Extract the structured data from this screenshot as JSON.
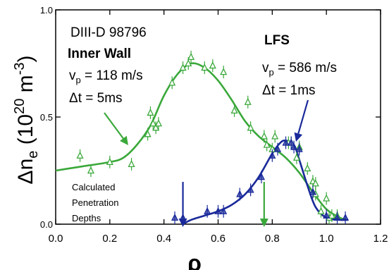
{
  "chart_data": {
    "type": "scatter",
    "title": "",
    "xlabel": "ρ",
    "ylabel_main": "Δn",
    "ylabel_sub": "e",
    "ylabel_rest": " (10",
    "ylabel_exp": "20",
    "ylabel_unit": " m",
    "ylabel_unit_exp": "-3",
    "ylabel_close": ")",
    "xlim": [
      0.0,
      1.2
    ],
    "ylim": [
      0.0,
      1.0
    ],
    "xticks": [
      0.0,
      0.2,
      0.4,
      0.6,
      0.8,
      1.0,
      1.2
    ],
    "xtick_labels": [
      "0.0",
      "0.2",
      "0.4",
      "0.6",
      "0.8",
      "1.0",
      "1.2"
    ],
    "yticks": [
      0.0,
      0.5,
      1.0
    ],
    "ytick_labels": [
      "0.0",
      "0.5",
      "1.0"
    ],
    "grid": false,
    "series": [
      {
        "name": "Inner Wall",
        "color": "#3aa83a",
        "points": [
          [
            0.09,
            0.32
          ],
          [
            0.13,
            0.25
          ],
          [
            0.2,
            0.29
          ],
          [
            0.28,
            0.28
          ],
          [
            0.34,
            0.42
          ],
          [
            0.35,
            0.52
          ],
          [
            0.36,
            0.47
          ],
          [
            0.37,
            0.45
          ],
          [
            0.38,
            0.47
          ],
          [
            0.43,
            0.66
          ],
          [
            0.47,
            0.73
          ],
          [
            0.49,
            0.75
          ],
          [
            0.5,
            0.78
          ],
          [
            0.55,
            0.73
          ],
          [
            0.58,
            0.74
          ],
          [
            0.62,
            0.71
          ],
          [
            0.66,
            0.53
          ],
          [
            0.71,
            0.57
          ],
          [
            0.72,
            0.45
          ],
          [
            0.77,
            0.41
          ],
          [
            0.78,
            0.37
          ],
          [
            0.8,
            0.35
          ],
          [
            0.81,
            0.41
          ],
          [
            0.86,
            0.38
          ],
          [
            0.87,
            0.38
          ],
          [
            0.89,
            0.31
          ],
          [
            0.9,
            0.36
          ],
          [
            0.93,
            0.26
          ],
          [
            0.95,
            0.2
          ],
          [
            0.96,
            0.19
          ],
          [
            0.96,
            0.14
          ],
          [
            0.98,
            0.06
          ],
          [
            1.0,
            0.12
          ],
          [
            1.01,
            0.03
          ],
          [
            1.02,
            0.04
          ],
          [
            1.04,
            0.04
          ]
        ],
        "fit": [
          [
            0.0,
            0.25
          ],
          [
            0.05,
            0.26
          ],
          [
            0.1,
            0.27
          ],
          [
            0.2,
            0.29
          ],
          [
            0.25,
            0.31
          ],
          [
            0.3,
            0.37
          ],
          [
            0.35,
            0.46
          ],
          [
            0.4,
            0.6
          ],
          [
            0.45,
            0.7
          ],
          [
            0.5,
            0.75
          ],
          [
            0.55,
            0.73
          ],
          [
            0.6,
            0.67
          ],
          [
            0.65,
            0.58
          ],
          [
            0.7,
            0.48
          ],
          [
            0.75,
            0.41
          ],
          [
            0.8,
            0.36
          ],
          [
            0.85,
            0.31
          ],
          [
            0.9,
            0.24
          ],
          [
            0.95,
            0.15
          ],
          [
            1.0,
            0.07
          ],
          [
            1.05,
            0.03
          ],
          [
            1.08,
            0.02
          ]
        ]
      },
      {
        "name": "LFS",
        "color": "#1a2a9a",
        "points": [
          [
            0.44,
            0.03
          ],
          [
            0.47,
            0.03
          ],
          [
            0.56,
            0.06
          ],
          [
            0.6,
            0.06
          ],
          [
            0.62,
            0.06
          ],
          [
            0.68,
            0.14
          ],
          [
            0.72,
            0.16
          ],
          [
            0.76,
            0.22
          ],
          [
            0.8,
            0.32
          ],
          [
            0.82,
            0.35
          ],
          [
            0.85,
            0.38
          ],
          [
            0.87,
            0.38
          ],
          [
            0.88,
            0.36
          ],
          [
            0.9,
            0.35
          ],
          [
            0.95,
            0.15
          ],
          [
            1.0,
            0.04
          ],
          [
            1.04,
            0.03
          ],
          [
            1.07,
            0.03
          ]
        ],
        "fit": [
          [
            0.47,
            0.0
          ],
          [
            0.5,
            0.02
          ],
          [
            0.55,
            0.04
          ],
          [
            0.6,
            0.06
          ],
          [
            0.65,
            0.09
          ],
          [
            0.7,
            0.14
          ],
          [
            0.75,
            0.22
          ],
          [
            0.8,
            0.33
          ],
          [
            0.83,
            0.38
          ],
          [
            0.85,
            0.39
          ],
          [
            0.88,
            0.37
          ],
          [
            0.9,
            0.3
          ],
          [
            0.93,
            0.18
          ],
          [
            0.96,
            0.08
          ],
          [
            1.0,
            0.03
          ],
          [
            1.05,
            0.02
          ],
          [
            1.08,
            0.02
          ]
        ]
      }
    ],
    "annotations": {
      "shot": "DIII-D   98796",
      "inner_wall": {
        "title": "Inner Wall",
        "vp_label": "v",
        "vp_sub": "p",
        "vp_value": " = 118 m/s",
        "dt_label": "Δt = 5ms"
      },
      "lfs": {
        "title": "LFS",
        "vp_label": "v",
        "vp_sub": "p",
        "vp_value": " = 586 m/s",
        "dt_label": "Δt = 1ms"
      },
      "penetration": [
        "Calculated",
        "Penetration",
        "Depths"
      ],
      "penetration_arrows": [
        {
          "series": "LFS",
          "x": 0.47,
          "color": "#1a2a9a"
        },
        {
          "series": "Inner Wall",
          "x": 0.77,
          "color": "#3aa83a"
        }
      ]
    }
  }
}
